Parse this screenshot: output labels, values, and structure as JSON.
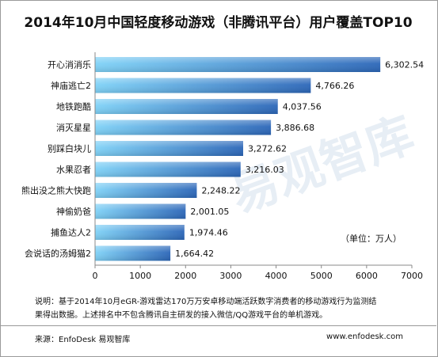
{
  "chart_data": {
    "type": "bar",
    "orientation": "horizontal",
    "title": "2014年10月中国轻度移动游戏（非腾讯平台）用户覆盖TOP10",
    "categories": [
      "开心消消乐",
      "神庙逃亡2",
      "地铁跑酷",
      "消灭星星",
      "别踩白块儿",
      "水果忍者",
      "熊出没之熊大快跑",
      "神偷奶爸",
      "捕鱼达人2",
      "会说话的汤姆猫2"
    ],
    "values": [
      6302.54,
      4766.26,
      4037.56,
      3886.68,
      3272.62,
      3216.03,
      2248.22,
      2001.05,
      1974.46,
      1664.42
    ],
    "value_labels": [
      "6,302.54",
      "4,766.26",
      "4,037.56",
      "3,886.68",
      "3,272.62",
      "3,216.03",
      "2,248.22",
      "2,001.05",
      "1,974.46",
      "1,664.42"
    ],
    "xlim": [
      0,
      7000
    ],
    "xticks": [
      "0",
      "1000",
      "2000",
      "3000",
      "4000",
      "5000",
      "6000",
      "7000"
    ],
    "unit_note": "（单位：万人）",
    "grid": false,
    "bar_color_light": "#7fd2f7",
    "bar_color_dark": "#2b66b8"
  },
  "notes": {
    "line1": "说明：基于2014年10月eGR-游戏雷达170万万安卓移动端活跃数字消费者的移动游戏行为监测结",
    "line2": "果得出数据。上述排名中不包含腾讯自主研发的接入微信/QQ游戏平台的单机游戏。"
  },
  "footer": {
    "source": "来源：EnfoDesk 易观智库",
    "site": "www.enfodesk.com"
  },
  "watermark": "易观智库"
}
